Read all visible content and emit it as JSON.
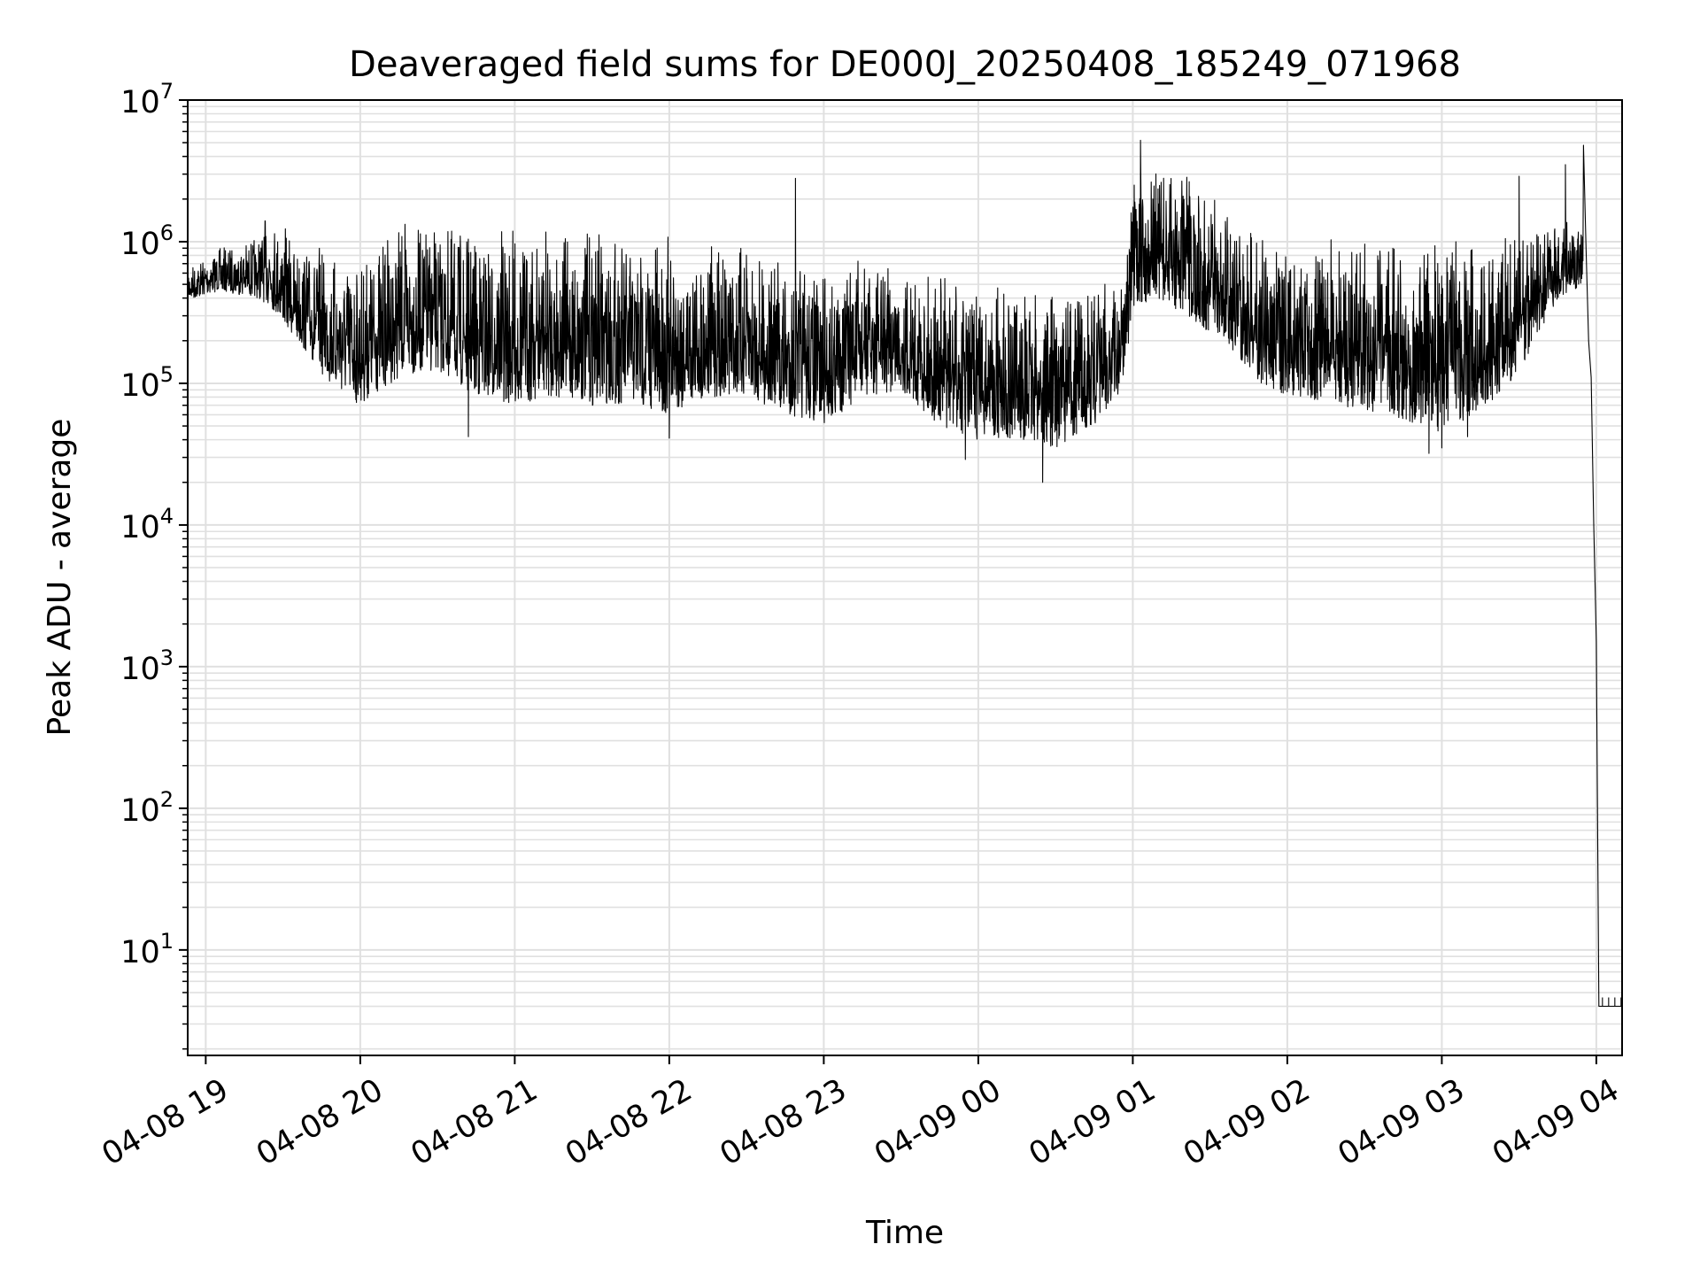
{
  "chart_data": {
    "type": "line",
    "title": "Deaveraged field sums for DE000J_20250408_185249_071968",
    "xlabel": "Time",
    "ylabel": "Peak ADU - average",
    "yscale": "log",
    "ylim": [
      1.8,
      10000000
    ],
    "xlim": [
      "2025-04-08 18:53",
      "2025-04-09 04:10"
    ],
    "grid": true,
    "line_color": "#000000",
    "grid_color": "#e0e0e0",
    "x_ticks": [
      {
        "t": "2025-04-08 19:00",
        "label": "04-08 19"
      },
      {
        "t": "2025-04-08 20:00",
        "label": "04-08 20"
      },
      {
        "t": "2025-04-08 21:00",
        "label": "04-08 21"
      },
      {
        "t": "2025-04-08 22:00",
        "label": "04-08 22"
      },
      {
        "t": "2025-04-08 23:00",
        "label": "04-08 23"
      },
      {
        "t": "2025-04-09 00:00",
        "label": "04-09 00"
      },
      {
        "t": "2025-04-09 01:00",
        "label": "04-09 01"
      },
      {
        "t": "2025-04-09 02:00",
        "label": "04-09 02"
      },
      {
        "t": "2025-04-09 03:00",
        "label": "04-09 03"
      },
      {
        "t": "2025-04-09 04:00",
        "label": "04-09 04"
      }
    ],
    "y_ticks": [
      {
        "value": 10,
        "base": "10",
        "exp": "1"
      },
      {
        "value": 100,
        "base": "10",
        "exp": "2"
      },
      {
        "value": 1000,
        "base": "10",
        "exp": "3"
      },
      {
        "value": 10000,
        "base": "10",
        "exp": "4"
      },
      {
        "value": 100000,
        "base": "10",
        "exp": "5"
      },
      {
        "value": 1000000,
        "base": "10",
        "exp": "6"
      },
      {
        "value": 10000000,
        "base": "10",
        "exp": "7"
      }
    ],
    "series": [
      {
        "envelope": [
          {
            "t": "2025-04-08 18:53",
            "low": 380000,
            "high": 700000
          },
          {
            "t": "2025-04-08 19:05",
            "low": 450000,
            "high": 900000
          },
          {
            "t": "2025-04-08 19:20",
            "low": 400000,
            "high": 1100000
          },
          {
            "t": "2025-04-08 19:25",
            "low": 350000,
            "high": 1800000
          },
          {
            "t": "2025-04-08 19:35",
            "low": 200000,
            "high": 1000000
          },
          {
            "t": "2025-04-08 19:50",
            "low": 90000,
            "high": 900000
          },
          {
            "t": "2025-04-08 20:00",
            "low": 70000,
            "high": 800000
          },
          {
            "t": "2025-04-08 20:15",
            "low": 110000,
            "high": 1400000
          },
          {
            "t": "2025-04-08 20:30",
            "low": 120000,
            "high": 1300000
          },
          {
            "t": "2025-04-08 20:45",
            "low": 80000,
            "high": 1200000
          },
          {
            "t": "2025-04-08 21:00",
            "low": 70000,
            "high": 1200000
          },
          {
            "t": "2025-04-08 21:15",
            "low": 80000,
            "high": 1300000
          },
          {
            "t": "2025-04-08 21:30",
            "low": 70000,
            "high": 1200000
          },
          {
            "t": "2025-04-08 21:45",
            "low": 70000,
            "high": 1100000
          },
          {
            "t": "2025-04-08 22:00",
            "low": 60000,
            "high": 1100000
          },
          {
            "t": "2025-04-08 22:15",
            "low": 80000,
            "high": 1000000
          },
          {
            "t": "2025-04-08 22:30",
            "low": 80000,
            "high": 900000
          },
          {
            "t": "2025-04-08 22:45",
            "low": 60000,
            "high": 800000
          },
          {
            "t": "2025-04-08 23:00",
            "low": 50000,
            "high": 700000
          },
          {
            "t": "2025-04-08 23:15",
            "low": 80000,
            "high": 800000
          },
          {
            "t": "2025-04-08 23:30",
            "low": 90000,
            "high": 700000
          },
          {
            "t": "2025-04-08 23:45",
            "low": 50000,
            "high": 600000
          },
          {
            "t": "2025-04-09 00:00",
            "low": 40000,
            "high": 500000
          },
          {
            "t": "2025-04-09 00:15",
            "low": 40000,
            "high": 450000
          },
          {
            "t": "2025-04-09 00:30",
            "low": 35000,
            "high": 500000
          },
          {
            "t": "2025-04-09 00:45",
            "low": 50000,
            "high": 500000
          },
          {
            "t": "2025-04-09 00:55",
            "low": 80000,
            "high": 600000
          },
          {
            "t": "2025-04-09 01:00",
            "low": 300000,
            "high": 2500000
          },
          {
            "t": "2025-04-09 01:08",
            "low": 400000,
            "high": 3500000
          },
          {
            "t": "2025-04-09 01:20",
            "low": 300000,
            "high": 3000000
          },
          {
            "t": "2025-04-09 01:35",
            "low": 200000,
            "high": 1800000
          },
          {
            "t": "2025-04-09 01:50",
            "low": 100000,
            "high": 1200000
          },
          {
            "t": "2025-04-09 02:00",
            "low": 80000,
            "high": 1000000
          },
          {
            "t": "2025-04-09 02:20",
            "low": 70000,
            "high": 1100000
          },
          {
            "t": "2025-04-09 02:40",
            "low": 60000,
            "high": 1000000
          },
          {
            "t": "2025-04-09 03:00",
            "low": 45000,
            "high": 1000000
          },
          {
            "t": "2025-04-09 03:15",
            "low": 60000,
            "high": 1100000
          },
          {
            "t": "2025-04-09 03:30",
            "low": 120000,
            "high": 1300000
          },
          {
            "t": "2025-04-09 03:45",
            "low": 400000,
            "high": 1600000
          },
          {
            "t": "2025-04-09 03:55",
            "low": 500000,
            "high": 1200000
          }
        ],
        "spikes": [
          {
            "t": "2025-04-08 22:49",
            "value": 2800000
          },
          {
            "t": "2025-04-09 01:03",
            "value": 5200000
          },
          {
            "t": "2025-04-09 03:30",
            "value": 2900000
          },
          {
            "t": "2025-04-09 03:48",
            "value": 3500000
          },
          {
            "t": "2025-04-09 03:55",
            "value": 4800000
          },
          {
            "t": "2025-04-08 20:42",
            "value": 42000
          },
          {
            "t": "2025-04-09 00:25",
            "value": 20000
          },
          {
            "t": "2025-04-08 22:00",
            "value": 41000
          },
          {
            "t": "2025-04-08 23:55",
            "value": 29000
          },
          {
            "t": "2025-04-09 02:55",
            "value": 32000
          },
          {
            "t": "2025-04-09 03:00",
            "value": 35000
          },
          {
            "t": "2025-04-09 03:10",
            "value": 42000
          }
        ],
        "tail": [
          {
            "t": "2025-04-09 03:56",
            "value": 900000
          },
          {
            "t": "2025-04-09 03:57",
            "value": 200000
          },
          {
            "t": "2025-04-09 03:58",
            "value": 110000
          },
          {
            "t": "2025-04-09 03:59",
            "value": 10000
          },
          {
            "t": "2025-04-09 04:00",
            "value": 1500
          },
          {
            "t": "2025-04-09 04:01",
            "value": 4
          },
          {
            "t": "2025-04-09 04:10",
            "value": 4
          }
        ]
      }
    ]
  }
}
